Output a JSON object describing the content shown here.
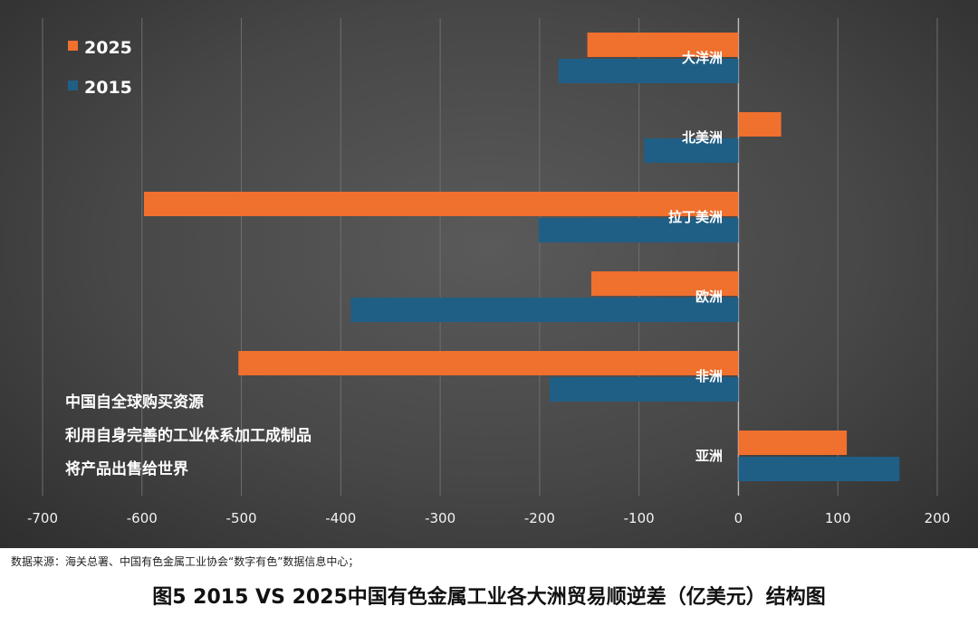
{
  "chart_data": {
    "type": "bar",
    "orientation": "horizontal",
    "title": "图5  2015 VS 2025中国有色金属工业各大洲贸易顺逆差（亿美元）结构图",
    "categories": [
      "大洋洲",
      "北美洲",
      "拉丁美洲",
      "欧洲",
      "非洲",
      "亚洲"
    ],
    "series": [
      {
        "name": "2025",
        "color": "#F0702E",
        "values": [
          -152,
          43,
          -598,
          -148,
          -503,
          109
        ]
      },
      {
        "name": "2015",
        "color": "#1F5F86",
        "values": [
          -181,
          -95,
          -201,
          -390,
          -190,
          162
        ]
      }
    ],
    "xlim": [
      -700,
      200
    ],
    "xticks": [
      -700,
      -600,
      -500,
      -400,
      -300,
      -200,
      -100,
      0,
      100,
      200
    ],
    "grid": true,
    "legend_position": "top-left",
    "annotation_lines": [
      "中国自全球购买资源",
      "利用自身完善的工业体系加工成制品",
      "将产品出售给世界"
    ]
  },
  "source": "数据来源：海关总署、中国有色金属工业协会“数字有色”数据信息中心；"
}
